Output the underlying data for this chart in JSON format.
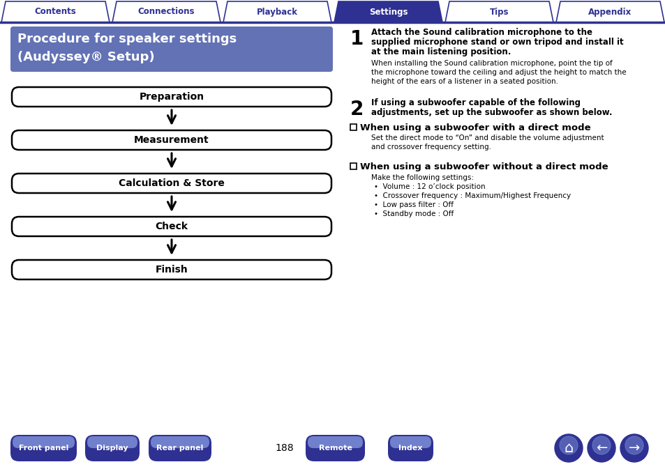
{
  "bg_color": "#ffffff",
  "header_tabs": [
    "Contents",
    "Connections",
    "Playback",
    "Settings",
    "Tips",
    "Appendix"
  ],
  "active_tab": "Settings",
  "tab_color_active": "#2e3192",
  "tab_color_inactive": "#ffffff",
  "tab_text_color_active": "#ffffff",
  "tab_text_color_inactive": "#2e3192",
  "tab_border_color": "#2e3192",
  "header_line_color": "#2e3192",
  "left_title_bg": "#6272b5",
  "left_title_text_color": "#ffffff",
  "left_title_line1": "Procedure for speaker settings",
  "left_title_line2": "(Audyssey® Setup)",
  "flowchart_steps": [
    "Preparation",
    "Measurement",
    "Calculation & Store",
    "Check",
    "Finish"
  ],
  "step1_bold_lines": [
    "Attach the Sound calibration microphone to the",
    "supplied microphone stand or own tripod and install it",
    "at the main listening position."
  ],
  "step1_normal_lines": [
    "When installing the Sound calibration microphone, point the tip of",
    "the microphone toward the ceiling and adjust the height to match the",
    "height of the ears of a listener in a seated position."
  ],
  "step2_bold_lines": [
    "If using a subwoofer capable of the following",
    "adjustments, set up the subwoofer as shown below."
  ],
  "sub1_heading": "When using a subwoofer with a direct mode",
  "sub1_text_lines": [
    "Set the direct mode to “On” and disable the volume adjustment",
    "and crossover frequency setting."
  ],
  "sub2_heading": "When using a subwoofer without a direct mode",
  "sub2_bullets": [
    "Make the following settings:",
    "Volume : 12 o’clock position",
    "Crossover frequency : Maximum/Highest Frequency",
    "Low pass filter : Off",
    "Standby mode : Off"
  ],
  "footer_buttons": [
    "Front panel",
    "Display",
    "Rear panel",
    "Remote",
    "Index"
  ],
  "footer_page": "188",
  "footer_btn_color": "#2e3192",
  "footer_btn_text_color": "#ffffff"
}
